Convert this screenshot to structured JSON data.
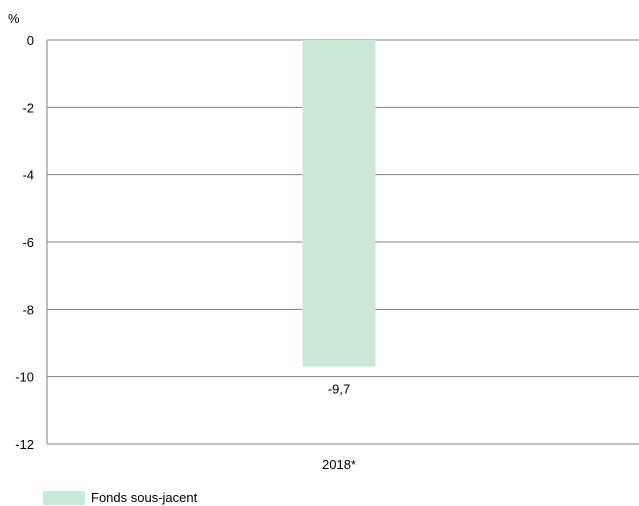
{
  "chart_data": {
    "type": "bar",
    "unit_label": "%",
    "categories": [
      "2018*"
    ],
    "series": [
      {
        "name": "Fonds sous-jacent",
        "values": [
          -9.7
        ],
        "labels": [
          "-9,7"
        ],
        "color": "#c9e8d8"
      }
    ],
    "ylim": [
      -12,
      0
    ],
    "yticks": [
      0,
      -2,
      -4,
      -6,
      -8,
      -10,
      -12
    ],
    "ytick_labels": [
      "0",
      "-2",
      "-4",
      "-6",
      "-8",
      "-10",
      "-12"
    ],
    "grid": true,
    "grid_color": "#808080",
    "legend_position": "bottom-left"
  },
  "legend": {
    "items": [
      {
        "label": "Fonds sous-jacent",
        "color": "#c9e8d8"
      }
    ]
  }
}
